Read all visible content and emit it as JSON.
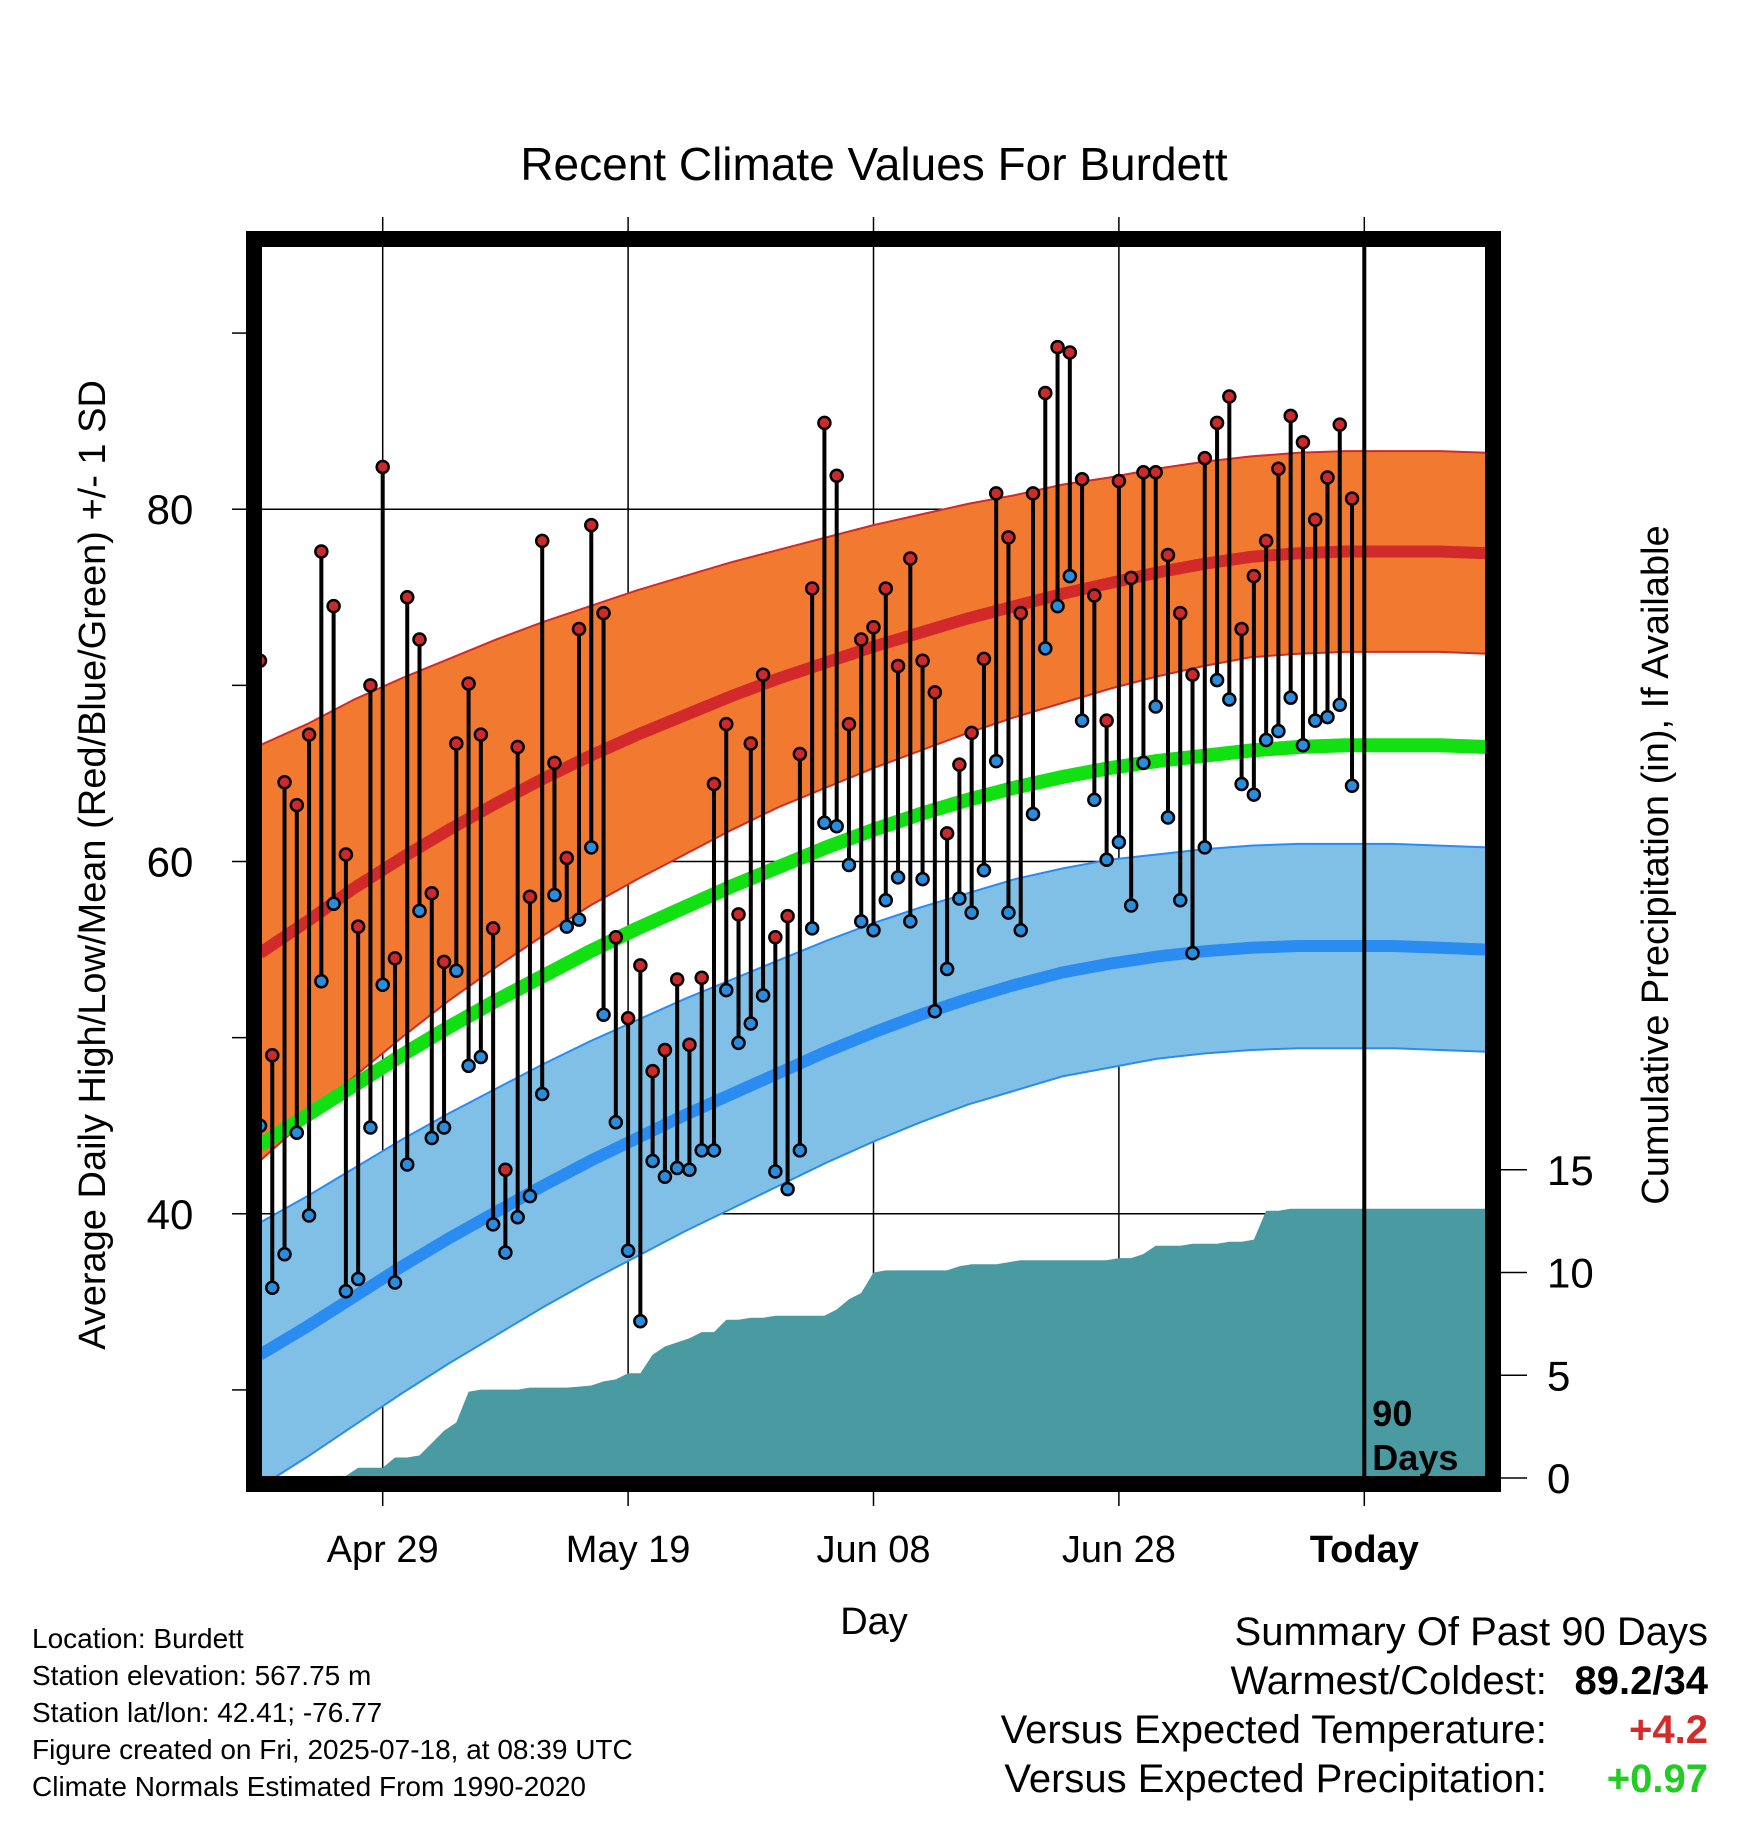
{
  "chart_data": {
    "type": "line",
    "title": "Recent Climate Values For Burdett",
    "xlabel": "Day",
    "ylabel": "Average Daily High/Low/Mean (Red/Blue/Green) +/- 1 SD",
    "y2label": "Cumulative Precipitation (in), If Available",
    "x_ticks": [
      "Apr 29",
      "May 19",
      "Jun 08",
      "Jun 28",
      "Today"
    ],
    "x_day_range": [
      -90,
      10
    ],
    "x_tick_days": [
      -80,
      -60,
      -40,
      -20,
      0
    ],
    "ylim": [
      25,
      95
    ],
    "y_ticks": [
      40,
      60,
      80
    ],
    "y2lim": [
      0,
      60
    ],
    "y2_ticks": [
      0,
      5,
      10,
      15
    ],
    "today_marker_label": [
      "90",
      "Days"
    ],
    "colors": {
      "high_band": "#f27a30",
      "high_mean": "#d22a2a",
      "low_band": "#80c0e6",
      "low_mean": "#2a8cf0",
      "mean_line": "#11e011",
      "precip": "#4a9aa2",
      "high_dot": "#cc2a2a",
      "low_dot": "#2a8cdc"
    },
    "normal_high": [
      54.8,
      56.6,
      58.5,
      60.2,
      61.8,
      63.3,
      64.7,
      66.0,
      67.2,
      68.3,
      69.4,
      70.4,
      71.3,
      72.2,
      73.0,
      73.8,
      74.5,
      75.2,
      75.8,
      76.4,
      76.9,
      77.3,
      77.5,
      77.6,
      77.6,
      77.6,
      77.5
    ],
    "normal_high_sd": [
      11.8,
      11.2,
      10.7,
      10.2,
      9.7,
      9.3,
      8.9,
      8.5,
      8.2,
      7.9,
      7.6,
      7.3,
      7.1,
      6.9,
      6.7,
      6.5,
      6.3,
      6.2,
      6.0,
      5.9,
      5.8,
      5.7,
      5.7,
      5.7,
      5.7,
      5.7,
      5.7
    ],
    "normal_low": [
      32.0,
      33.6,
      35.3,
      37.0,
      38.6,
      40.1,
      41.6,
      43.0,
      44.3,
      45.6,
      46.8,
      48.0,
      49.2,
      50.3,
      51.3,
      52.2,
      53.0,
      53.7,
      54.2,
      54.6,
      54.9,
      55.1,
      55.2,
      55.2,
      55.2,
      55.1,
      55.0
    ],
    "normal_low_sd": [
      7.5,
      7.4,
      7.3,
      7.2,
      7.1,
      7.0,
      6.9,
      6.8,
      6.7,
      6.6,
      6.5,
      6.4,
      6.3,
      6.2,
      6.1,
      6.0,
      6.0,
      5.9,
      5.9,
      5.8,
      5.8,
      5.8,
      5.8,
      5.8,
      5.8,
      5.8,
      5.8
    ],
    "normal_mean": [
      43.9,
      45.6,
      47.3,
      49.0,
      50.6,
      52.1,
      53.5,
      54.9,
      56.2,
      57.4,
      58.6,
      59.7,
      60.8,
      61.8,
      62.7,
      63.5,
      64.2,
      64.8,
      65.3,
      65.7,
      66.0,
      66.3,
      66.5,
      66.6,
      66.6,
      66.6,
      66.5
    ],
    "highs": [
      71.4,
      49.0,
      64.5,
      63.2,
      67.2,
      77.6,
      74.5,
      60.4,
      56.3,
      70.0,
      82.4,
      54.5,
      75.0,
      72.6,
      58.2,
      54.3,
      66.7,
      70.1,
      67.2,
      56.2,
      42.5,
      66.5,
      58.0,
      78.2,
      65.6,
      60.2,
      73.2,
      79.1,
      74.1,
      55.7,
      51.1,
      54.1,
      48.1,
      49.3,
      53.3,
      49.6,
      53.4,
      64.4,
      67.8,
      57.0,
      66.7,
      70.6,
      55.7,
      56.9,
      66.1,
      75.5,
      84.9,
      81.9,
      67.8,
      72.6,
      73.3,
      75.5,
      71.1,
      77.2,
      71.4,
      69.6,
      61.6,
      65.5,
      67.3,
      71.5,
      80.9,
      78.4,
      74.1,
      80.9,
      86.6,
      89.2,
      88.9,
      81.7,
      75.1,
      68.0,
      81.6,
      76.1,
      82.1,
      82.1,
      77.4,
      74.1,
      70.6,
      82.9,
      84.9,
      86.4,
      73.2,
      76.2,
      78.2,
      82.3,
      85.3,
      83.8,
      79.4,
      81.8,
      84.8,
      80.6
    ],
    "lows": [
      45.0,
      35.8,
      37.7,
      44.6,
      39.9,
      53.2,
      57.6,
      35.6,
      36.3,
      44.9,
      53.0,
      36.1,
      42.8,
      57.2,
      44.3,
      44.9,
      53.8,
      48.4,
      48.9,
      39.4,
      37.8,
      39.8,
      41.0,
      46.8,
      58.1,
      56.3,
      56.7,
      60.8,
      51.3,
      45.2,
      37.9,
      33.9,
      43.0,
      42.1,
      42.6,
      42.5,
      43.6,
      43.6,
      52.7,
      49.7,
      50.8,
      52.4,
      42.4,
      41.4,
      43.6,
      56.2,
      62.2,
      62.0,
      59.8,
      56.6,
      56.1,
      57.8,
      59.1,
      56.6,
      59.0,
      51.5,
      53.9,
      57.9,
      57.1,
      59.5,
      65.7,
      57.1,
      56.1,
      62.7,
      72.1,
      74.5,
      76.2,
      68.0,
      63.5,
      60.1,
      61.1,
      57.5,
      65.6,
      68.8,
      62.5,
      57.8,
      54.8,
      60.8,
      70.3,
      69.2,
      64.4,
      63.8,
      66.9,
      67.4,
      69.3,
      66.6,
      68.0,
      68.2,
      68.9,
      64.3
    ],
    "precip_cumulative": [
      0.0,
      0.0,
      0.05,
      0.05,
      0.05,
      0.05,
      0.1,
      0.1,
      0.5,
      0.5,
      0.5,
      1.0,
      1.0,
      1.1,
      1.7,
      2.3,
      2.7,
      4.2,
      4.3,
      4.3,
      4.3,
      4.3,
      4.4,
      4.4,
      4.4,
      4.4,
      4.45,
      4.5,
      4.7,
      4.8,
      5.1,
      5.1,
      6.0,
      6.4,
      6.6,
      6.8,
      7.1,
      7.1,
      7.7,
      7.7,
      7.8,
      7.8,
      7.9,
      7.9,
      7.9,
      7.9,
      7.9,
      8.2,
      8.7,
      9.0,
      10.0,
      10.1,
      10.1,
      10.1,
      10.1,
      10.1,
      10.1,
      10.3,
      10.4,
      10.4,
      10.4,
      10.5,
      10.6,
      10.6,
      10.6,
      10.6,
      10.6,
      10.6,
      10.6,
      10.6,
      10.7,
      10.7,
      10.9,
      11.3,
      11.3,
      11.3,
      11.4,
      11.4,
      11.4,
      11.5,
      11.5,
      11.6,
      13.0,
      13.0,
      13.1,
      13.1,
      13.1,
      13.1,
      13.1,
      13.1
    ]
  },
  "location": "Location: Burdett",
  "elevation": "Station elevation: 567.75 m",
  "latlon": "Station lat/lon: 42.41; -76.77",
  "created": "Figure created on Fri, 2025-07-18, at 08:39 UTC",
  "normals": "Climate Normals Estimated From 1990-2020",
  "summary": {
    "title": "Summary Of Past 90 Days",
    "warmest_label": "Warmest/Coldest:",
    "warmest_value": "89.2/34",
    "temp_label": "Versus Expected Temperature:",
    "temp_value": "+4.2",
    "precip_label": "Versus Expected Precipitation:",
    "precip_value": "+0.97"
  }
}
